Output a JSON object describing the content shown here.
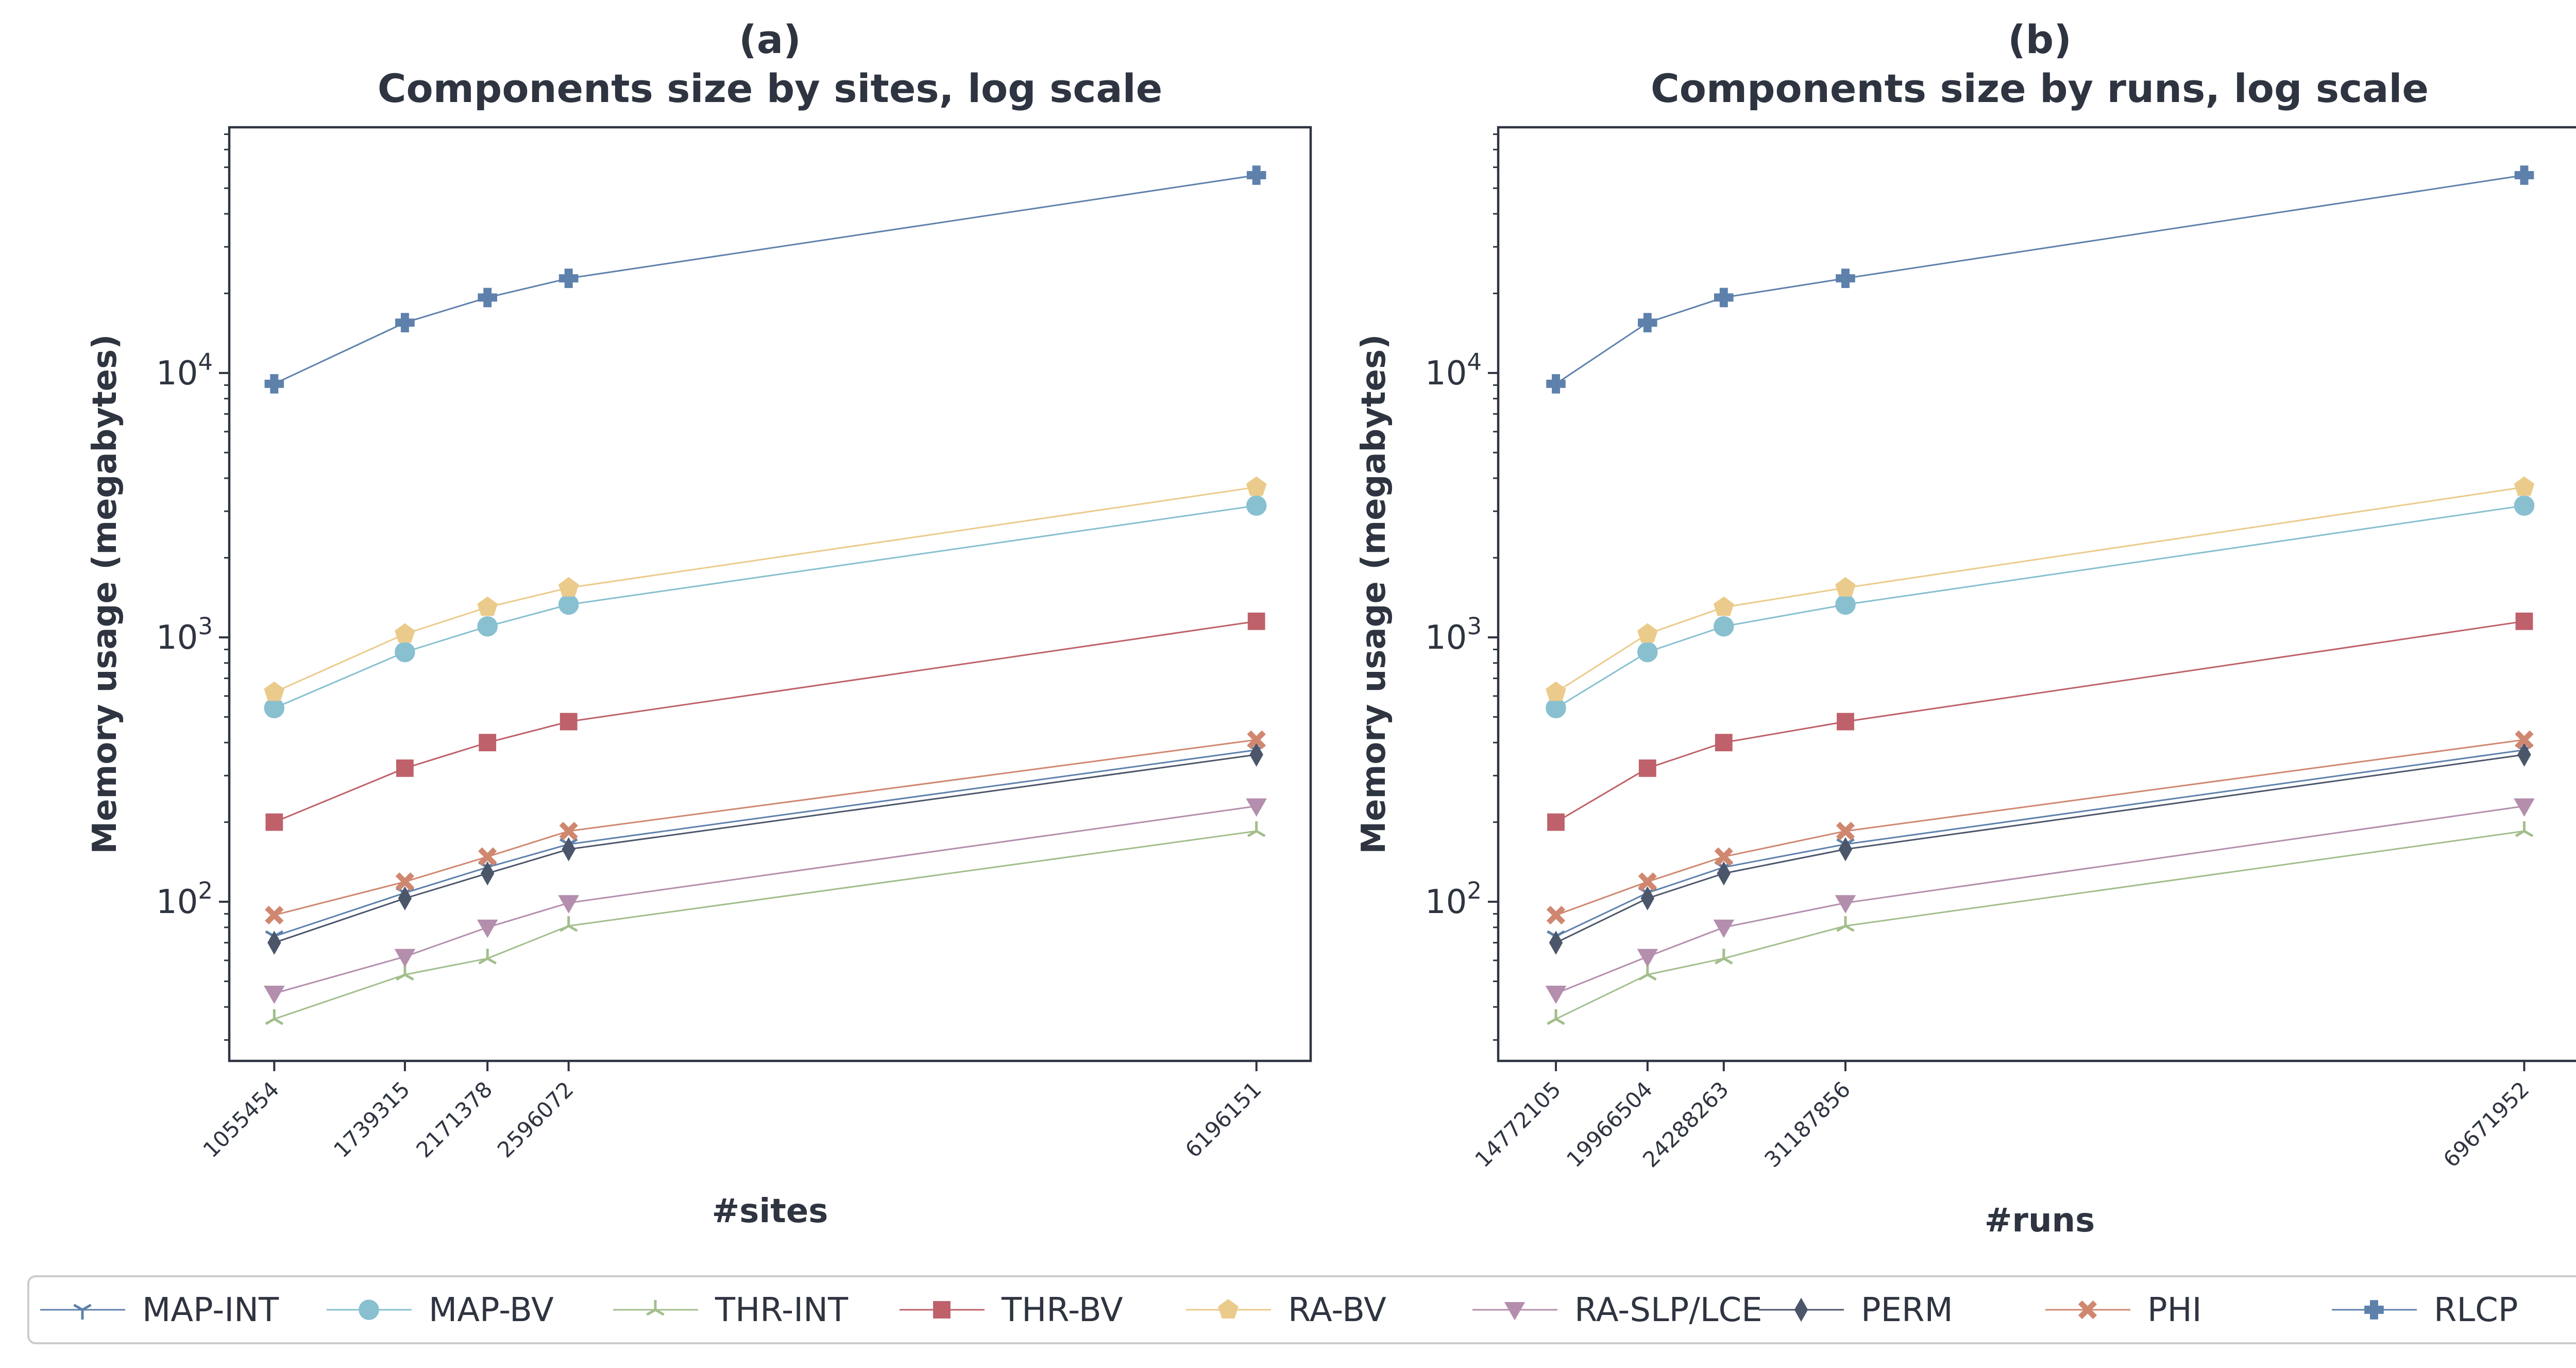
{
  "colors": {
    "text": "#2e3440",
    "axes": "#2e3440",
    "legend_border": "#cccccc"
  },
  "chart_data": [
    {
      "type": "line",
      "panel": "(a)",
      "title": "Components size by sites, log scale",
      "xlabel": "#sites",
      "ylabel": "Memory usage (megabytes)",
      "yscale": "log",
      "ylim": [
        25,
        85000
      ],
      "xlim": [
        820000,
        6480000
      ],
      "grid": false,
      "x": [
        1055454,
        1739315,
        2171378,
        2596072,
        6196151
      ],
      "xticklabels": [
        "1055454",
        "1739315",
        "2171378",
        "2596072",
        "6196151"
      ],
      "yticks": [
        100,
        1000,
        10000
      ],
      "yticklabels": [
        {
          "base": "10",
          "exp": "2"
        },
        {
          "base": "10",
          "exp": "3"
        },
        {
          "base": "10",
          "exp": "4"
        }
      ],
      "series": [
        {
          "name": "MAP-INT",
          "marker": "tri_down",
          "color": "#5e81ac",
          "values": [
            74,
            108,
            135,
            165,
            375
          ]
        },
        {
          "name": "MAP-BV",
          "marker": "circle",
          "color": "#88c0d0",
          "values": [
            540,
            880,
            1100,
            1330,
            3150
          ]
        },
        {
          "name": "THR-INT",
          "marker": "tri_up",
          "color": "#a3be8c",
          "values": [
            36,
            53,
            61,
            81,
            185
          ]
        },
        {
          "name": "THR-BV",
          "marker": "square",
          "color": "#bf616a",
          "values": [
            200,
            320,
            400,
            480,
            1150
          ]
        },
        {
          "name": "RA-BV",
          "marker": "pentagon",
          "color": "#ebcb8b",
          "values": [
            620,
            1030,
            1300,
            1540,
            3700
          ]
        },
        {
          "name": "RA-SLP/LCE",
          "marker": "triangle_down",
          "color": "#b48ead",
          "values": [
            45,
            62,
            80,
            99,
            230
          ]
        },
        {
          "name": "PERM",
          "marker": "thin_diamond",
          "color": "#4c566a",
          "values": [
            70,
            103,
            128,
            158,
            360
          ]
        },
        {
          "name": "PHI",
          "marker": "x_filled",
          "color": "#d08770",
          "values": [
            89,
            119,
            148,
            185,
            410
          ]
        },
        {
          "name": "RLCP",
          "marker": "plus_filled",
          "color": "#5e81ac",
          "values": [
            9100,
            15500,
            19300,
            22800,
            56000
          ]
        }
      ]
    },
    {
      "type": "line",
      "panel": "(b)",
      "title": "Components size by runs, log scale",
      "xlabel": "#runs",
      "ylabel": "Memory usage (megabytes)",
      "yscale": "log",
      "ylim": [
        25,
        85000
      ],
      "xlim": [
        11500000,
        72900000
      ],
      "grid": false,
      "x": [
        14772105,
        19966504,
        24288263,
        31187856,
        69671952
      ],
      "xticklabels": [
        "14772105",
        "19966504",
        "24288263",
        "31187856",
        "69671952"
      ],
      "yticks": [
        100,
        1000,
        10000
      ],
      "yticklabels": [
        {
          "base": "10",
          "exp": "2"
        },
        {
          "base": "10",
          "exp": "3"
        },
        {
          "base": "10",
          "exp": "4"
        }
      ],
      "series": [
        {
          "name": "MAP-INT",
          "marker": "tri_down",
          "color": "#5e81ac",
          "values": [
            74,
            108,
            135,
            165,
            375
          ]
        },
        {
          "name": "MAP-BV",
          "marker": "circle",
          "color": "#88c0d0",
          "values": [
            540,
            880,
            1100,
            1330,
            3150
          ]
        },
        {
          "name": "THR-INT",
          "marker": "tri_up",
          "color": "#a3be8c",
          "values": [
            36,
            53,
            61,
            81,
            185
          ]
        },
        {
          "name": "THR-BV",
          "marker": "square",
          "color": "#bf616a",
          "values": [
            200,
            320,
            400,
            480,
            1150
          ]
        },
        {
          "name": "RA-BV",
          "marker": "pentagon",
          "color": "#ebcb8b",
          "values": [
            620,
            1030,
            1300,
            1540,
            3700
          ]
        },
        {
          "name": "RA-SLP/LCE",
          "marker": "triangle_down",
          "color": "#b48ead",
          "values": [
            45,
            62,
            80,
            99,
            230
          ]
        },
        {
          "name": "PERM",
          "marker": "thin_diamond",
          "color": "#4c566a",
          "values": [
            70,
            103,
            128,
            158,
            360
          ]
        },
        {
          "name": "PHI",
          "marker": "x_filled",
          "color": "#d08770",
          "values": [
            89,
            119,
            148,
            185,
            410
          ]
        },
        {
          "name": "RLCP",
          "marker": "plus_filled",
          "color": "#5e81ac",
          "values": [
            9100,
            15500,
            19300,
            22800,
            56000
          ]
        }
      ]
    }
  ],
  "legend": {
    "placement": "bottom",
    "items": [
      {
        "label": "MAP-INT",
        "marker": "tri_down",
        "color": "#5e81ac"
      },
      {
        "label": "MAP-BV",
        "marker": "circle",
        "color": "#88c0d0"
      },
      {
        "label": "THR-INT",
        "marker": "tri_up",
        "color": "#a3be8c"
      },
      {
        "label": "THR-BV",
        "marker": "square",
        "color": "#bf616a"
      },
      {
        "label": "RA-BV",
        "marker": "pentagon",
        "color": "#ebcb8b"
      },
      {
        "label": "RA-SLP/LCE",
        "marker": "triangle_down",
        "color": "#b48ead"
      },
      {
        "label": "PERM",
        "marker": "thin_diamond",
        "color": "#4c566a"
      },
      {
        "label": "PHI",
        "marker": "x_filled",
        "color": "#d08770"
      },
      {
        "label": "RLCP",
        "marker": "plus_filled",
        "color": "#5e81ac"
      }
    ]
  }
}
